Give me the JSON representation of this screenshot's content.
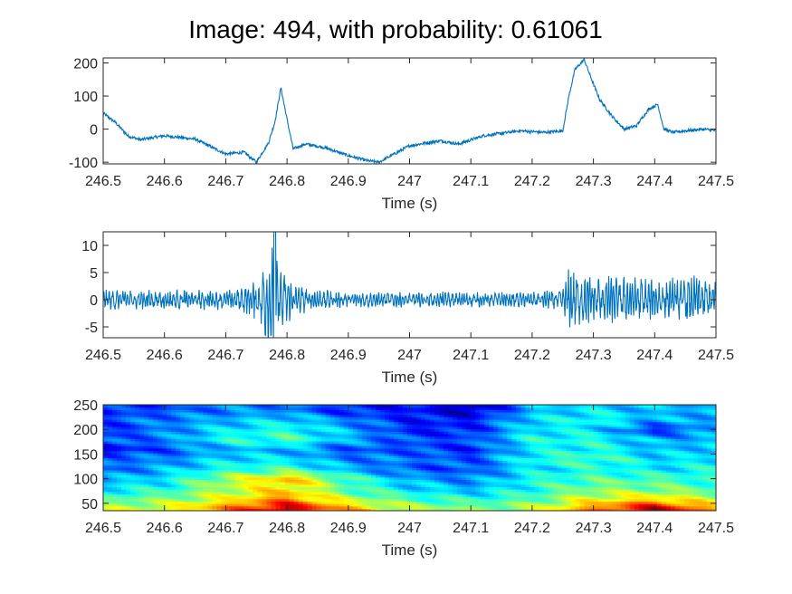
{
  "title": "Image: 494, with probability: 0.61061",
  "chart_data": [
    {
      "type": "line",
      "xlabel": "Time (s)",
      "ylabel": "",
      "xlim": [
        246.5,
        247.5
      ],
      "ylim": [
        -105,
        215
      ],
      "xticks": [
        246.5,
        246.6,
        246.7,
        246.8,
        246.9,
        247,
        247.1,
        247.2,
        247.3,
        247.4,
        247.5
      ],
      "xtick_labels": [
        "246.5",
        "246.6",
        "246.7",
        "246.8",
        "246.9",
        "247",
        "247.1",
        "247.2",
        "247.3",
        "247.4",
        "247.5"
      ],
      "yticks": [
        -100,
        0,
        100,
        200
      ],
      "ytick_labels": [
        "-100",
        "0",
        "100",
        "200"
      ],
      "color": "#0072BD",
      "series": [
        {
          "x": [
            246.5,
            246.52,
            246.54,
            246.56,
            246.6,
            246.65,
            246.7,
            246.73,
            246.75,
            246.77,
            246.78,
            246.79,
            246.8,
            246.81,
            246.83,
            246.86,
            246.9,
            246.93,
            246.95,
            246.97,
            247.0,
            247.05,
            247.08,
            247.12,
            247.18,
            247.22,
            247.25,
            247.26,
            247.27,
            247.285,
            247.295,
            247.31,
            247.33,
            247.35,
            247.37,
            247.39,
            247.405,
            247.415,
            247.43,
            247.45,
            247.48,
            247.5
          ],
          "y": [
            48,
            20,
            -20,
            -32,
            -20,
            -30,
            -75,
            -70,
            -100,
            -40,
            20,
            125,
            30,
            -60,
            -45,
            -55,
            -80,
            -95,
            -100,
            -80,
            -50,
            -35,
            -45,
            -20,
            -5,
            -10,
            -5,
            100,
            180,
            210,
            160,
            90,
            40,
            0,
            10,
            60,
            75,
            0,
            -10,
            -5,
            0,
            -5
          ]
        }
      ]
    },
    {
      "type": "line",
      "xlabel": "Time (s)",
      "ylabel": "",
      "xlim": [
        246.5,
        247.5
      ],
      "ylim": [
        -7,
        12.5
      ],
      "xticks": [
        246.5,
        246.6,
        246.7,
        246.8,
        246.9,
        247,
        247.1,
        247.2,
        247.3,
        247.4,
        247.5
      ],
      "xtick_labels": [
        "246.5",
        "246.6",
        "246.7",
        "246.8",
        "246.9",
        "247",
        "247.1",
        "247.2",
        "247.3",
        "247.4",
        "247.5"
      ],
      "yticks": [
        -5,
        0,
        5,
        10
      ],
      "ytick_labels": [
        "-5",
        "0",
        "5",
        "10"
      ],
      "color": "#0072BD",
      "series": [
        {
          "x": [
            246.5,
            246.6,
            246.7,
            246.74,
            246.76,
            246.775,
            246.785,
            246.795,
            246.81,
            246.85,
            246.9,
            247.0,
            247.1,
            247.2,
            247.25,
            247.26,
            247.28,
            247.3,
            247.35,
            247.4,
            247.45,
            247.5
          ],
          "y": [
            2,
            2,
            2,
            3,
            6,
            12.5,
            7,
            6,
            3,
            2,
            1.5,
            1.5,
            1.5,
            1.5,
            2,
            6,
            5,
            4.5,
            4.5,
            4,
            4.5,
            4.5
          ]
        }
      ]
    },
    {
      "type": "heatmap",
      "xlabel": "Time (s)",
      "ylabel": "",
      "xlim": [
        246.5,
        247.5
      ],
      "ylim": [
        35,
        250
      ],
      "xticks": [
        246.5,
        246.6,
        246.7,
        246.8,
        246.9,
        247,
        247.1,
        247.2,
        247.3,
        247.4,
        247.5
      ],
      "xtick_labels": [
        "246.5",
        "246.6",
        "246.7",
        "246.8",
        "246.9",
        "247",
        "247.1",
        "247.2",
        "247.3",
        "247.4",
        "247.5"
      ],
      "yticks": [
        50,
        100,
        150,
        200,
        250
      ],
      "ytick_labels": [
        "50",
        "100",
        "150",
        "200",
        "250"
      ],
      "colormap": "jet",
      "t": [
        246.5,
        246.6,
        246.7,
        246.8,
        246.9,
        247.0,
        247.1,
        247.2,
        247.3,
        247.4,
        247.5
      ],
      "f": [
        40,
        60,
        80,
        100,
        120,
        140,
        160,
        180,
        200,
        220,
        240,
        250
      ],
      "z": [
        [
          0.55,
          0.6,
          0.75,
          0.95,
          0.7,
          0.55,
          0.5,
          0.55,
          0.75,
          0.95,
          0.7
        ],
        [
          0.45,
          0.5,
          0.6,
          0.75,
          0.55,
          0.45,
          0.4,
          0.45,
          0.6,
          0.65,
          0.55
        ],
        [
          0.35,
          0.4,
          0.55,
          0.65,
          0.45,
          0.35,
          0.3,
          0.4,
          0.5,
          0.5,
          0.45
        ],
        [
          0.3,
          0.35,
          0.55,
          0.7,
          0.45,
          0.3,
          0.25,
          0.4,
          0.45,
          0.45,
          0.4
        ],
        [
          0.2,
          0.3,
          0.4,
          0.45,
          0.3,
          0.2,
          0.2,
          0.35,
          0.4,
          0.35,
          0.4
        ],
        [
          0.25,
          0.25,
          0.35,
          0.35,
          0.25,
          0.25,
          0.2,
          0.4,
          0.45,
          0.35,
          0.35
        ],
        [
          0.1,
          0.2,
          0.3,
          0.3,
          0.2,
          0.2,
          0.15,
          0.35,
          0.4,
          0.3,
          0.35
        ],
        [
          0.2,
          0.25,
          0.4,
          0.45,
          0.3,
          0.2,
          0.2,
          0.4,
          0.4,
          0.3,
          0.3
        ],
        [
          0.15,
          0.25,
          0.35,
          0.4,
          0.3,
          0.15,
          0.15,
          0.35,
          0.35,
          0.15,
          0.3
        ],
        [
          0.2,
          0.25,
          0.3,
          0.35,
          0.25,
          0.15,
          0.15,
          0.35,
          0.4,
          0.3,
          0.3
        ],
        [
          0.15,
          0.2,
          0.25,
          0.25,
          0.15,
          0.15,
          0.05,
          0.3,
          0.35,
          0.3,
          0.3
        ],
        [
          0.15,
          0.2,
          0.25,
          0.25,
          0.15,
          0.15,
          0.05,
          0.3,
          0.35,
          0.3,
          0.3
        ]
      ]
    }
  ]
}
